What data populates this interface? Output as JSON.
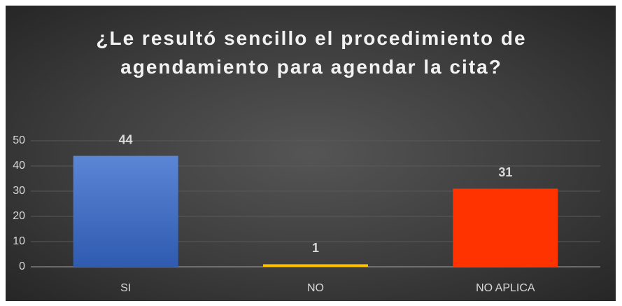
{
  "chart_data": {
    "type": "bar",
    "title": "¿Le resultó sencillo el procedimiento de agendamiento para agendar la cita?",
    "categories": [
      "SI",
      "NO",
      "NO APLICA"
    ],
    "values": [
      44,
      1,
      31
    ],
    "colors": [
      "#4472c4",
      "#ffc000",
      "#ff3300"
    ],
    "ylim": [
      0,
      50
    ],
    "yticks": [
      0,
      10,
      20,
      30,
      40,
      50
    ],
    "grid": true
  }
}
